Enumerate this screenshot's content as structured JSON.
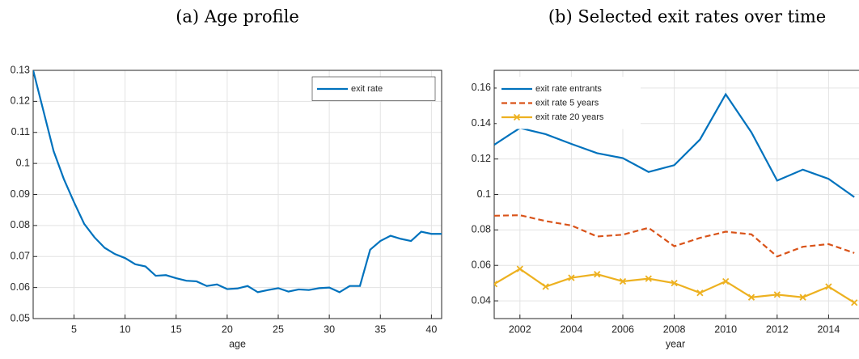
{
  "chart_data": [
    {
      "type": "line",
      "title": "(a) Age profile",
      "x_label": "age",
      "x": [
        1,
        2,
        3,
        4,
        5,
        6,
        7,
        8,
        9,
        10,
        11,
        12,
        13,
        14,
        15,
        16,
        17,
        18,
        19,
        20,
        21,
        22,
        23,
        24,
        25,
        26,
        27,
        28,
        29,
        30,
        31,
        32,
        33,
        34,
        35,
        36,
        37,
        38,
        39,
        40,
        41
      ],
      "series": [
        {
          "name": "exit rate",
          "color": "#0072bd",
          "line_style": "solid",
          "values": [
            0.13,
            0.117,
            0.104,
            0.095,
            0.0875,
            0.0805,
            0.0762,
            0.0728,
            0.0708,
            0.0695,
            0.0675,
            0.0668,
            0.0638,
            0.064,
            0.063,
            0.0622,
            0.062,
            0.0605,
            0.061,
            0.0595,
            0.0597,
            0.0605,
            0.0585,
            0.0592,
            0.0598,
            0.0587,
            0.0594,
            0.0592,
            0.0598,
            0.06,
            0.0585,
            0.0605,
            0.0605,
            0.0722,
            0.075,
            0.0767,
            0.0757,
            0.075,
            0.078,
            0.0773,
            0.0773
          ]
        }
      ],
      "xlim": [
        1,
        41
      ],
      "xticks": [
        5,
        10,
        15,
        20,
        25,
        30,
        35,
        40
      ],
      "ylim": [
        0.05,
        0.13
      ],
      "yticks": [
        0.05,
        0.06,
        0.07,
        0.08,
        0.09,
        0.1,
        0.11,
        0.12,
        0.13
      ],
      "grid": true,
      "legend": "upper-right"
    },
    {
      "type": "line",
      "title": "(b) Selected exit rates over time",
      "x_label": "year",
      "x": [
        2001,
        2002,
        2003,
        2004,
        2005,
        2006,
        2007,
        2008,
        2009,
        2010,
        2011,
        2012,
        2013,
        2014,
        2015
      ],
      "series": [
        {
          "name": "exit rate entrants",
          "color": "#0072bd",
          "line_style": "solid",
          "values": [
            0.128,
            0.1375,
            0.134,
            0.1285,
            0.1233,
            0.1205,
            0.1127,
            0.1165,
            0.131,
            0.1565,
            0.135,
            0.1078,
            0.114,
            0.1088,
            0.0985
          ]
        },
        {
          "name": "exit rate 5 years",
          "color": "#d95319",
          "line_style": "dashed",
          "values": [
            0.088,
            0.0883,
            0.085,
            0.0825,
            0.0763,
            0.0773,
            0.0812,
            0.0708,
            0.0755,
            0.079,
            0.0775,
            0.065,
            0.0705,
            0.072,
            0.067
          ]
        },
        {
          "name": "exit rate 20 years",
          "color": "#edb120",
          "line_style": "solid",
          "marker": "x",
          "values": [
            0.0495,
            0.058,
            0.048,
            0.053,
            0.055,
            0.051,
            0.0525,
            0.05,
            0.0445,
            0.051,
            0.042,
            0.0435,
            0.042,
            0.048,
            0.039
          ]
        }
      ],
      "xlim": [
        2001,
        2016
      ],
      "xticks": [
        2002,
        2004,
        2006,
        2008,
        2010,
        2012,
        2014
      ],
      "ylim": [
        0.03,
        0.17
      ],
      "yticks": [
        0.04,
        0.06,
        0.08,
        0.1,
        0.12,
        0.14,
        0.16
      ],
      "grid": true,
      "legend": "upper-left"
    }
  ]
}
